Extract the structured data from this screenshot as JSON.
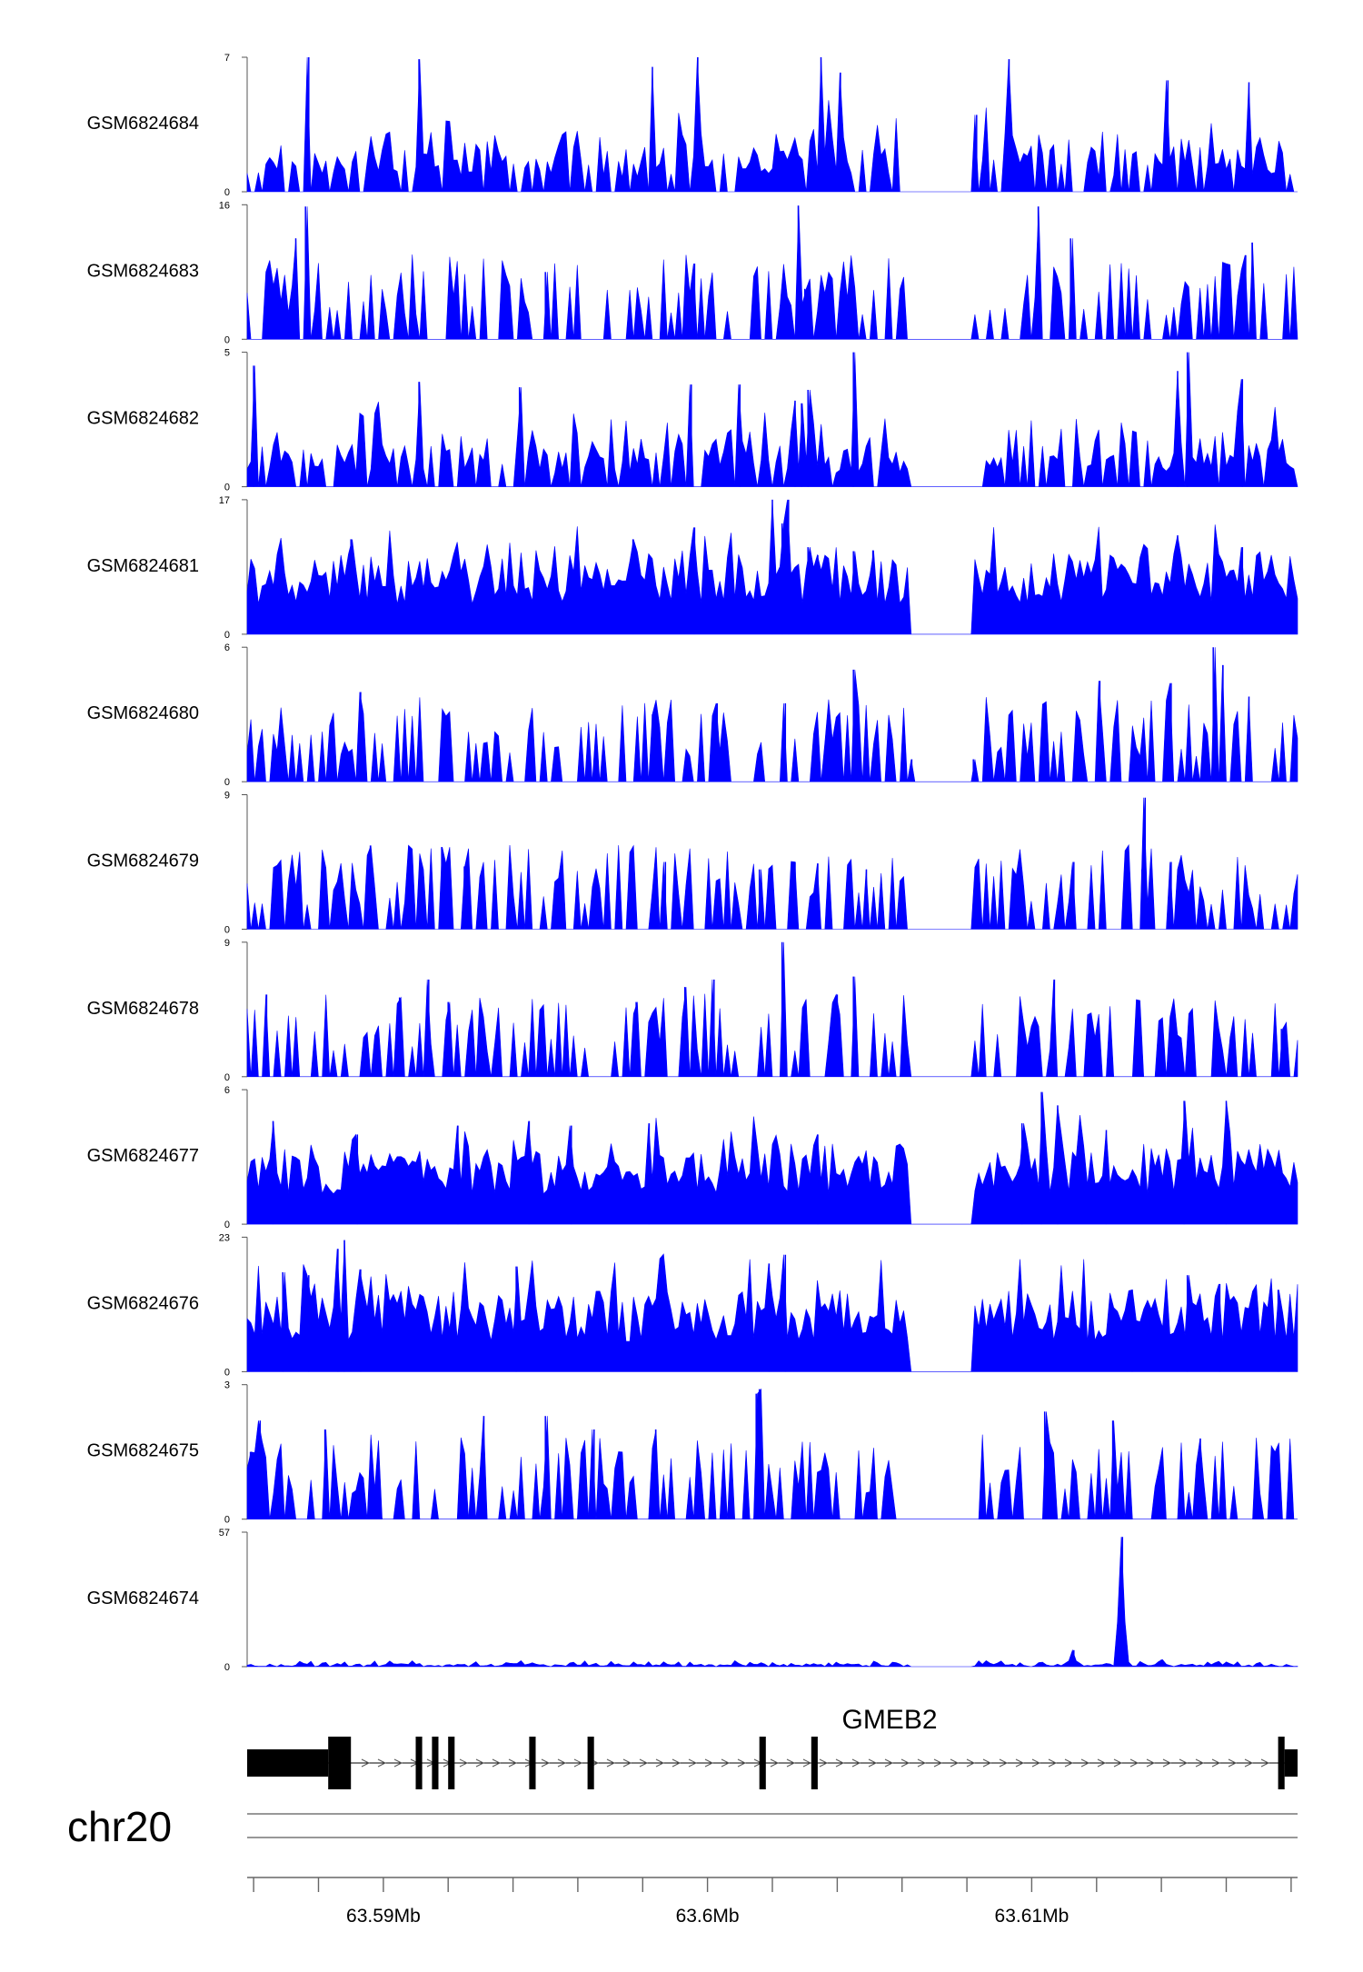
{
  "chart_data": {
    "type": "area",
    "title": "",
    "color": "#0000ff",
    "chromosome": "chr20",
    "x_range_mb": [
      63.5858,
      63.6182
    ],
    "x_ticks": [
      {
        "pos": 63.59,
        "label": "63.59Mb"
      },
      {
        "pos": 63.6,
        "label": "63.6Mb"
      },
      {
        "pos": 63.61,
        "label": "63.61Mb"
      }
    ],
    "gap_regions_mb": [
      [
        63.6062,
        63.6082
      ]
    ],
    "tracks": [
      {
        "name": "GSM6824684",
        "ymax": 7,
        "ymin": 0,
        "style": "spiky",
        "seed": 11,
        "peaks": [
          [
            63.5877,
            7.0
          ],
          [
            63.5911,
            6.9
          ],
          [
            63.5983,
            6.5
          ],
          [
            63.5997,
            7.0
          ],
          [
            63.6035,
            7.0
          ],
          [
            63.6041,
            6.2
          ],
          [
            63.6083,
            4.0
          ],
          [
            63.6093,
            6.9
          ],
          [
            63.6142,
            5.8
          ],
          [
            63.6167,
            5.7
          ]
        ]
      },
      {
        "name": "GSM6824683",
        "ymax": 16,
        "ymin": 0,
        "style": "sparse",
        "seed": 23,
        "peaks": [
          [
            63.5876,
            15.8
          ],
          [
            63.5873,
            12.0
          ],
          [
            63.595,
            8.0
          ],
          [
            63.5996,
            9.0
          ],
          [
            63.6028,
            15.9
          ],
          [
            63.603,
            6.0
          ],
          [
            63.6102,
            15.8
          ],
          [
            63.6112,
            12.0
          ],
          [
            63.6166,
            10.0
          ],
          [
            63.6168,
            11.5
          ]
        ]
      },
      {
        "name": "GSM6824682",
        "ymax": 5,
        "ymin": 0,
        "style": "spiky",
        "seed": 37,
        "peaks": [
          [
            63.586,
            4.5
          ],
          [
            63.5911,
            3.9
          ],
          [
            63.5942,
            3.7
          ],
          [
            63.5995,
            3.8
          ],
          [
            63.601,
            3.8
          ],
          [
            63.6027,
            3.2
          ],
          [
            63.6029,
            3.1
          ],
          [
            63.6031,
            3.6
          ],
          [
            63.6045,
            5.0
          ],
          [
            63.6145,
            4.3
          ],
          [
            63.6148,
            5.0
          ],
          [
            63.6165,
            4.0
          ]
        ]
      },
      {
        "name": "GSM6824681",
        "ymax": 17,
        "ymin": 0,
        "style": "dense",
        "seed": 41,
        "peaks": [
          [
            63.589,
            12.0
          ],
          [
            63.5977,
            12.0
          ],
          [
            63.5996,
            13.5
          ],
          [
            63.602,
            17.0
          ],
          [
            63.6023,
            14.0
          ],
          [
            63.6025,
            17.0
          ],
          [
            63.6031,
            11.0
          ],
          [
            63.6034,
            10.0
          ],
          [
            63.6045,
            10.5
          ],
          [
            63.6051,
            10.6
          ],
          [
            63.6145,
            12.5
          ],
          [
            63.6165,
            11.0
          ]
        ]
      },
      {
        "name": "GSM6824680",
        "ymax": 6,
        "ymin": 0,
        "style": "sparse",
        "seed": 53,
        "peaks": [
          [
            63.5893,
            4.0
          ],
          [
            63.5983,
            3.0
          ],
          [
            63.6003,
            3.5
          ],
          [
            63.6024,
            3.5
          ],
          [
            63.6045,
            5.0
          ],
          [
            63.6063,
            1.0
          ],
          [
            63.6082,
            1.0
          ],
          [
            63.6121,
            4.5
          ],
          [
            63.6143,
            4.4
          ],
          [
            63.6156,
            6.0
          ],
          [
            63.6159,
            5.2
          ],
          [
            63.6167,
            3.8
          ]
        ]
      },
      {
        "name": "GSM6824679",
        "ymax": 9,
        "ymin": 0,
        "style": "sparse",
        "seed": 67,
        "peaks": [
          [
            63.5896,
            5.6
          ],
          [
            63.5918,
            5.5
          ],
          [
            63.5925,
            4.2
          ],
          [
            63.5987,
            4.5
          ],
          [
            63.6016,
            4.0
          ],
          [
            63.6027,
            4.5
          ],
          [
            63.6034,
            4.4
          ],
          [
            63.6049,
            4.0
          ],
          [
            63.6113,
            4.5
          ],
          [
            63.6134,
            4.0
          ],
          [
            63.6135,
            8.8
          ],
          [
            63.6143,
            4.5
          ],
          [
            63.6168,
            1.4
          ]
        ]
      },
      {
        "name": "GSM6824678",
        "ymax": 9,
        "ymin": 0,
        "style": "sparse",
        "seed": 71,
        "peaks": [
          [
            63.5864,
            5.5
          ],
          [
            63.5905,
            5.3
          ],
          [
            63.5914,
            6.5
          ],
          [
            63.592,
            5.0
          ],
          [
            63.5978,
            5.0
          ],
          [
            63.5993,
            6.0
          ],
          [
            63.6002,
            6.5
          ],
          [
            63.6023,
            9.0
          ],
          [
            63.604,
            5.5
          ],
          [
            63.6045,
            6.7
          ],
          [
            63.6107,
            6.5
          ],
          [
            63.6143,
            4.0
          ],
          [
            63.6177,
            3.2
          ]
        ]
      },
      {
        "name": "GSM6824677",
        "ymax": 6,
        "ymin": 0,
        "style": "dense",
        "seed": 83,
        "peaks": [
          [
            63.5866,
            4.6
          ],
          [
            63.5892,
            4.0
          ],
          [
            63.5923,
            4.4
          ],
          [
            63.5945,
            4.6
          ],
          [
            63.5958,
            4.4
          ],
          [
            63.5982,
            4.5
          ],
          [
            63.6034,
            4.0
          ],
          [
            63.6097,
            4.5
          ],
          [
            63.6103,
            5.9
          ],
          [
            63.6108,
            5.3
          ],
          [
            63.6123,
            4.2
          ],
          [
            63.6147,
            5.5
          ],
          [
            63.616,
            5.5
          ]
        ]
      },
      {
        "name": "GSM6824676",
        "ymax": 23,
        "ymin": 0,
        "style": "dense",
        "seed": 97,
        "peaks": [
          [
            63.5869,
            17.0
          ],
          [
            63.5877,
            16.5
          ],
          [
            63.5886,
            21.0
          ],
          [
            63.5888,
            22.5
          ],
          [
            63.5893,
            17.5
          ],
          [
            63.5941,
            18.0
          ],
          [
            63.6019,
            18.5
          ],
          [
            63.6024,
            20.0
          ],
          [
            63.6131,
            14.0
          ],
          [
            63.6148,
            16.5
          ],
          [
            63.6158,
            15.0
          ],
          [
            63.6176,
            14.0
          ]
        ]
      },
      {
        "name": "GSM6824675",
        "ymax": 3,
        "ymin": 0,
        "style": "sparse",
        "seed": 101,
        "peaks": [
          [
            63.5859,
            1.5
          ],
          [
            63.5862,
            2.2
          ],
          [
            63.5882,
            2.0
          ],
          [
            63.5931,
            2.3
          ],
          [
            63.595,
            2.3
          ],
          [
            63.5965,
            2.0
          ],
          [
            63.5984,
            2.0
          ],
          [
            63.6015,
            2.8
          ],
          [
            63.6016,
            2.9
          ],
          [
            63.6104,
            2.4
          ],
          [
            63.6125,
            2.2
          ],
          [
            63.6152,
            1.8
          ],
          [
            63.6175,
            1.5
          ]
        ]
      },
      {
        "name": "GSM6824674",
        "ymax": 57,
        "ymin": 0,
        "style": "flat",
        "seed": 113,
        "peaks": [
          [
            63.6128,
            55.0
          ],
          [
            63.6113,
            7.0
          ],
          [
            63.614,
            3.0
          ],
          [
            63.616,
            2.0
          ]
        ]
      }
    ],
    "gene": {
      "name": "GMEB2",
      "strand": "-",
      "start_mb": 63.5858,
      "end_mb": 63.6182,
      "exons": [
        {
          "start": 63.5858,
          "end": 63.5883,
          "tall": false
        },
        {
          "start": 63.5883,
          "end": 63.589,
          "tall": true
        },
        {
          "start": 63.591,
          "end": 63.5912,
          "tall": true
        },
        {
          "start": 63.5915,
          "end": 63.5917,
          "tall": true
        },
        {
          "start": 63.592,
          "end": 63.5922,
          "tall": true
        },
        {
          "start": 63.5945,
          "end": 63.5947,
          "tall": true
        },
        {
          "start": 63.5963,
          "end": 63.5965,
          "tall": true
        },
        {
          "start": 63.6016,
          "end": 63.6018,
          "tall": true
        },
        {
          "start": 63.6032,
          "end": 63.6034,
          "tall": true
        },
        {
          "start": 63.6176,
          "end": 63.6178,
          "tall": true
        },
        {
          "start": 63.6178,
          "end": 63.6182,
          "tall": false
        }
      ]
    }
  }
}
